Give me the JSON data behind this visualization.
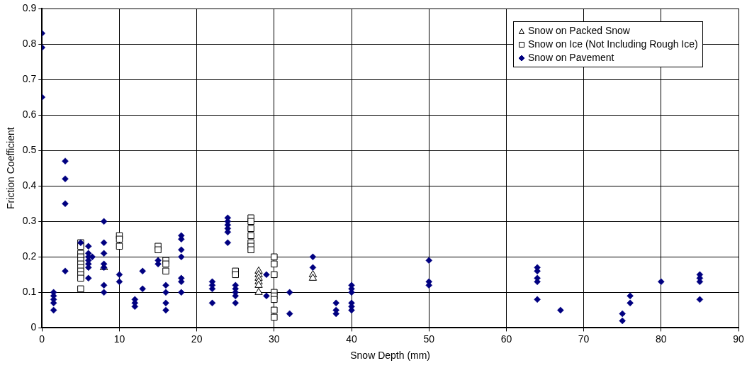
{
  "chart_data": {
    "type": "scatter",
    "xlabel": "Snow Depth (mm)",
    "ylabel": "Friction Coefficient",
    "xlim": [
      0,
      90
    ],
    "xticks": [
      0,
      10,
      20,
      30,
      40,
      50,
      60,
      70,
      80,
      90
    ],
    "ylim": [
      0,
      0.9
    ],
    "yticks": [
      0,
      0.1,
      0.2,
      0.3,
      0.4,
      0.5,
      0.6,
      0.7,
      0.8,
      0.9
    ],
    "grid": true,
    "legend": "top right",
    "series": [
      {
        "name": "Snow on Packed Snow",
        "color": "#000000",
        "marker": "triangle",
        "x": [
          8,
          28,
          28,
          28,
          28,
          28,
          28,
          35,
          35
        ],
        "values": [
          0.17,
          0.16,
          0.15,
          0.14,
          0.13,
          0.12,
          0.1,
          0.15,
          0.14
        ]
      },
      {
        "name": "Snow on Ice (Not Including Rough Ice)",
        "color": "#000000",
        "marker": "square",
        "x": [
          5,
          5,
          5,
          5,
          5,
          5,
          5,
          5,
          5,
          5,
          5,
          10,
          10,
          10,
          15,
          15,
          16,
          16,
          16,
          25,
          25,
          27,
          27,
          27,
          27,
          27,
          27,
          27,
          30,
          30,
          30,
          30,
          30,
          30,
          30,
          30
        ],
        "values": [
          0.24,
          0.23,
          0.21,
          0.2,
          0.19,
          0.18,
          0.17,
          0.16,
          0.15,
          0.14,
          0.11,
          0.26,
          0.25,
          0.23,
          0.23,
          0.22,
          0.19,
          0.18,
          0.16,
          0.16,
          0.15,
          0.31,
          0.3,
          0.28,
          0.26,
          0.24,
          0.23,
          0.22,
          0.2,
          0.18,
          0.15,
          0.1,
          0.09,
          0.08,
          0.05,
          0.03
        ]
      },
      {
        "name": "Snow on Pavement",
        "color": "#000080",
        "marker": "diamond",
        "x": [
          0,
          0,
          0,
          1.5,
          1.5,
          1.5,
          1.5,
          1.5,
          3,
          3,
          3,
          3,
          5,
          6,
          6,
          6,
          6,
          6,
          6,
          6,
          6.5,
          8,
          8,
          8,
          8,
          8,
          8,
          8,
          10,
          10,
          12,
          12,
          12,
          13,
          13,
          15,
          15,
          16,
          16,
          16,
          16,
          18,
          18,
          18,
          18,
          18,
          18,
          18,
          22,
          22,
          22,
          22,
          24,
          24,
          24,
          24,
          24,
          24,
          25,
          25,
          25,
          25,
          25,
          29,
          29,
          32,
          32,
          35,
          35,
          38,
          38,
          38,
          40,
          40,
          40,
          40,
          40,
          40,
          50,
          50,
          50,
          64,
          64,
          64,
          64,
          64,
          67,
          75,
          75,
          76,
          76,
          80,
          85,
          85,
          85,
          85
        ],
        "values": [
          0.83,
          0.79,
          0.65,
          0.1,
          0.09,
          0.08,
          0.07,
          0.05,
          0.47,
          0.42,
          0.35,
          0.16,
          0.24,
          0.23,
          0.21,
          0.2,
          0.19,
          0.18,
          0.17,
          0.14,
          0.2,
          0.3,
          0.24,
          0.21,
          0.18,
          0.17,
          0.12,
          0.1,
          0.15,
          0.13,
          0.08,
          0.07,
          0.06,
          0.16,
          0.11,
          0.19,
          0.18,
          0.12,
          0.1,
          0.07,
          0.05,
          0.26,
          0.25,
          0.22,
          0.2,
          0.14,
          0.13,
          0.1,
          0.13,
          0.12,
          0.11,
          0.07,
          0.31,
          0.3,
          0.29,
          0.28,
          0.27,
          0.24,
          0.12,
          0.11,
          0.1,
          0.09,
          0.07,
          0.15,
          0.09,
          0.1,
          0.04,
          0.2,
          0.17,
          0.07,
          0.05,
          0.04,
          0.12,
          0.11,
          0.1,
          0.07,
          0.06,
          0.05,
          0.19,
          0.13,
          0.12,
          0.17,
          0.16,
          0.14,
          0.13,
          0.08,
          0.05,
          0.04,
          0.02,
          0.09,
          0.07,
          0.13,
          0.15,
          0.14,
          0.13,
          0.08
        ]
      }
    ]
  }
}
